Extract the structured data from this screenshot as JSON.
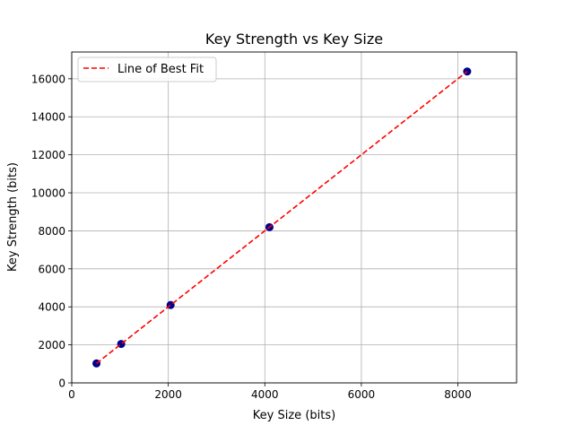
{
  "chart_data": {
    "type": "scatter",
    "title": "Key Strength vs Key Size",
    "xlabel": "Key Size (bits)",
    "ylabel": "Key Strength (bits)",
    "xlim": [
      0,
      9216
    ],
    "ylim": [
      0,
      17408
    ],
    "xticks": [
      0,
      2000,
      4000,
      6000,
      8000
    ],
    "yticks": [
      0,
      2000,
      4000,
      6000,
      8000,
      10000,
      12000,
      14000,
      16000
    ],
    "grid": true,
    "legend_position": "top-left",
    "series": [
      {
        "kind": "scatter",
        "x": [
          512,
          1024,
          2048,
          4096,
          8192
        ],
        "y": [
          1024,
          2048,
          4096,
          8192,
          16384
        ],
        "color": "#00008b"
      },
      {
        "kind": "line",
        "name": "Line of Best Fit",
        "style": "dashed",
        "color": "#ff0000",
        "x": [
          512,
          8192
        ],
        "y": [
          1024,
          16384
        ]
      }
    ]
  }
}
